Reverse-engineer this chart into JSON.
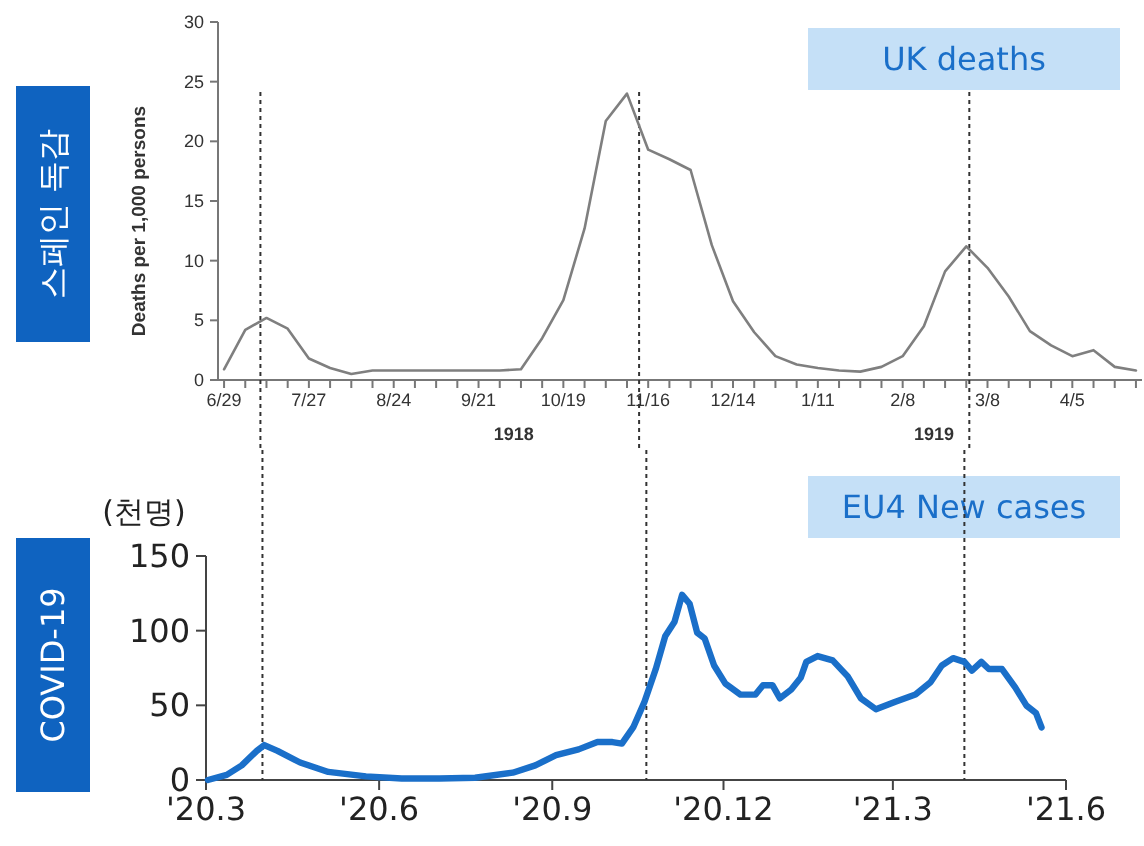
{
  "chart_data": [
    {
      "type": "line",
      "title": "스페인 독감",
      "subtitle": "UK deaths",
      "ylabel": "Deaths per 1,000 persons",
      "annotations": [
        "1918",
        "1919"
      ],
      "xlim": [
        "1918-06-27",
        "1919-04-28"
      ],
      "ylim": [
        0,
        30
      ],
      "yticks": [
        0,
        5,
        10,
        15,
        20,
        25,
        30
      ],
      "xticks": [
        {
          "value": "1918-06-29",
          "label": "6/29"
        },
        {
          "value": "1918-07-06",
          "label": null
        },
        {
          "value": "1918-07-13",
          "label": null
        },
        {
          "value": "1918-07-20",
          "label": null
        },
        {
          "value": "1918-07-27",
          "label": "7/27"
        },
        {
          "value": "1918-08-03",
          "label": null
        },
        {
          "value": "1918-08-10",
          "label": null
        },
        {
          "value": "1918-08-17",
          "label": null
        },
        {
          "value": "1918-08-24",
          "label": "8/24"
        },
        {
          "value": "1918-08-31",
          "label": null
        },
        {
          "value": "1918-09-07",
          "label": null
        },
        {
          "value": "1918-09-14",
          "label": null
        },
        {
          "value": "1918-09-21",
          "label": "9/21"
        },
        {
          "value": "1918-09-28",
          "label": null
        },
        {
          "value": "1918-10-05",
          "label": null
        },
        {
          "value": "1918-10-12",
          "label": null
        },
        {
          "value": "1918-10-19",
          "label": "10/19"
        },
        {
          "value": "1918-10-26",
          "label": null
        },
        {
          "value": "1918-11-02",
          "label": null
        },
        {
          "value": "1918-11-09",
          "label": null
        },
        {
          "value": "1918-11-16",
          "label": "11/16"
        },
        {
          "value": "1918-11-23",
          "label": null
        },
        {
          "value": "1918-11-30",
          "label": null
        },
        {
          "value": "1918-12-07",
          "label": null
        },
        {
          "value": "1918-12-14",
          "label": "12/14"
        },
        {
          "value": "1918-12-21",
          "label": null
        },
        {
          "value": "1918-12-28",
          "label": null
        },
        {
          "value": "1919-01-04",
          "label": null
        },
        {
          "value": "1919-01-11",
          "label": "1/11"
        },
        {
          "value": "1919-01-18",
          "label": null
        },
        {
          "value": "1919-01-25",
          "label": null
        },
        {
          "value": "1919-02-01",
          "label": null
        },
        {
          "value": "1919-02-08",
          "label": "2/8"
        },
        {
          "value": "1919-02-15",
          "label": null
        },
        {
          "value": "1919-02-22",
          "label": null
        },
        {
          "value": "1919-03-01",
          "label": null
        },
        {
          "value": "1919-03-08",
          "label": "3/8"
        },
        {
          "value": "1919-03-15",
          "label": null
        },
        {
          "value": "1919-03-22",
          "label": null
        },
        {
          "value": "1919-03-29",
          "label": null
        },
        {
          "value": "1919-04-05",
          "label": "4/5"
        },
        {
          "value": "1919-04-12",
          "label": null
        },
        {
          "value": "1919-04-19",
          "label": null
        },
        {
          "value": "1919-04-26",
          "label": null
        }
      ],
      "x": [
        "1918-06-29",
        "1918-07-06",
        "1918-07-13",
        "1918-07-20",
        "1918-07-27",
        "1918-08-03",
        "1918-08-10",
        "1918-08-17",
        "1918-08-24",
        "1918-08-31",
        "1918-09-07",
        "1918-09-14",
        "1918-09-21",
        "1918-09-28",
        "1918-10-05",
        "1918-10-12",
        "1918-10-19",
        "1918-10-26",
        "1918-11-02",
        "1918-11-09",
        "1918-11-16",
        "1918-11-23",
        "1918-11-30",
        "1918-12-07",
        "1918-12-14",
        "1918-12-21",
        "1918-12-28",
        "1919-01-04",
        "1919-01-11",
        "1919-01-18",
        "1919-01-25",
        "1919-02-01",
        "1919-02-08",
        "1919-02-15",
        "1919-02-22",
        "1919-03-01",
        "1919-03-08",
        "1919-03-15",
        "1919-03-22",
        "1919-03-29",
        "1919-04-05",
        "1919-04-12",
        "1919-04-19",
        "1919-04-26"
      ],
      "series": [
        {
          "color": "#7f7f7f",
          "values": [
            0.9,
            4.2,
            5.2,
            4.3,
            1.8,
            1.0,
            0.5,
            0.8,
            0.8,
            0.8,
            0.8,
            0.8,
            0.8,
            0.8,
            0.9,
            3.5,
            6.7,
            12.7,
            21.7,
            24.0,
            19.3,
            18.5,
            17.6,
            11.3,
            6.6,
            4.0,
            2.0,
            1.3,
            1.0,
            0.8,
            0.7,
            1.1,
            2.0,
            4.5,
            9.1,
            11.2,
            9.4,
            7.0,
            4.1,
            2.9,
            2.0,
            2.5,
            1.1,
            0.8
          ]
        }
      ],
      "ref_lines": [
        {
          "axis": "x",
          "value": "1918-07-11",
          "color": "#333333",
          "line_style": "dotted"
        },
        {
          "axis": "x",
          "value": "1918-11-13",
          "color": "#333333",
          "line_style": "dotted"
        },
        {
          "axis": "x",
          "value": "1919-03-02",
          "color": "#333333",
          "line_style": "dotted"
        }
      ]
    },
    {
      "type": "line",
      "title": "COVID-19",
      "subtitle": "EU4 New cases",
      "ylabel": "(천명)",
      "xlim": [
        "2020-03-01",
        "2021-06-01"
      ],
      "ylim": [
        0,
        150
      ],
      "yticks": [
        0,
        50,
        100,
        150
      ],
      "xticks": [
        {
          "value": "2020-03-01",
          "label": "'20.3"
        },
        {
          "value": "2020-06-01",
          "label": "'20.6"
        },
        {
          "value": "2020-09-01",
          "label": "'20.9"
        },
        {
          "value": "2020-12-01",
          "label": "'20.12"
        },
        {
          "value": "2021-03-01",
          "label": "'21.3"
        },
        {
          "value": "2021-06-01",
          "label": "'21.6"
        }
      ],
      "x": [
        "2020-03-02",
        "2020-03-12",
        "2020-03-20",
        "2020-03-28",
        "2020-04-01",
        "2020-04-08",
        "2020-04-20",
        "2020-05-05",
        "2020-05-25",
        "2020-06-13",
        "2020-07-03",
        "2020-07-22",
        "2020-08-11",
        "2020-08-23",
        "2020-09-03",
        "2020-09-15",
        "2020-09-25",
        "2020-10-03",
        "2020-10-08",
        "2020-10-14",
        "2020-10-20",
        "2020-10-26",
        "2020-10-31",
        "2020-11-05",
        "2020-11-09",
        "2020-11-13",
        "2020-11-17",
        "2020-11-21",
        "2020-11-26",
        "2020-12-02",
        "2020-12-10",
        "2020-12-18",
        "2020-12-22",
        "2020-12-27",
        "2020-12-31",
        "2021-01-06",
        "2021-01-11",
        "2021-01-14",
        "2021-01-20",
        "2021-01-28",
        "2021-02-05",
        "2021-02-12",
        "2021-02-20",
        "2021-03-02",
        "2021-03-13",
        "2021-03-21",
        "2021-03-27",
        "2021-04-02",
        "2021-04-08",
        "2021-04-12",
        "2021-04-17",
        "2021-04-21",
        "2021-04-28",
        "2021-05-05",
        "2021-05-11",
        "2021-05-16",
        "2021-05-19"
      ],
      "series": [
        {
          "color": "#1a6fc9",
          "values": [
            0,
            3.4,
            9.8,
            19.5,
            23.4,
            19.5,
            11.7,
            5.4,
            2.4,
            1,
            1,
            1.5,
            4.9,
            9.8,
            16.6,
            20.5,
            25.4,
            25.4,
            24.4,
            35.2,
            52.3,
            74.3,
            96.2,
            106,
            124,
            118,
            98.7,
            94.8,
            76.7,
            64.5,
            57.2,
            57.2,
            63.5,
            63.5,
            54.7,
            60.6,
            68.4,
            79.1,
            83,
            80.1,
            69.4,
            54.7,
            47.4,
            52.3,
            57.2,
            65.5,
            76.7,
            81.6,
            79.1,
            73.3,
            79.1,
            74.3,
            74.3,
            62,
            49.8,
            44.9,
            35.2
          ]
        }
      ],
      "ref_lines": [
        {
          "axis": "x",
          "value": "2020-03-31",
          "color": "#333333",
          "line_style": "dotted"
        },
        {
          "axis": "x",
          "value": "2020-10-21",
          "color": "#333333",
          "line_style": "dotted"
        },
        {
          "axis": "x",
          "value": "2021-04-08",
          "color": "#333333",
          "line_style": "dotted"
        }
      ]
    }
  ]
}
